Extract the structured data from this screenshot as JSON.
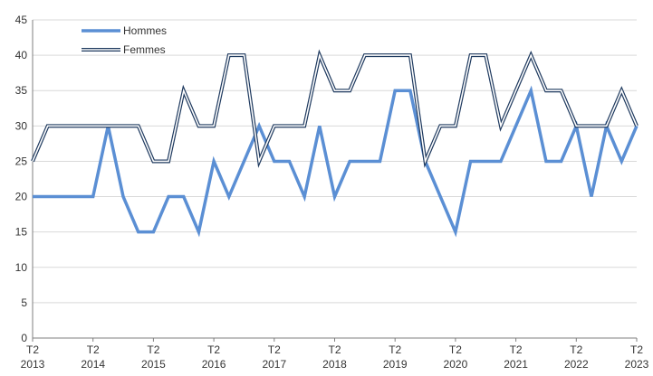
{
  "chart_data": {
    "type": "line",
    "x_tick_labels": [
      {
        "line1": "T2",
        "line2": "2013"
      },
      {
        "line1": "T2",
        "line2": "2014"
      },
      {
        "line1": "T2",
        "line2": "2015"
      },
      {
        "line1": "T2",
        "line2": "2016"
      },
      {
        "line1": "T2",
        "line2": "2017"
      },
      {
        "line1": "T2",
        "line2": "2018"
      },
      {
        "line1": "T2",
        "line2": "2019"
      },
      {
        "line1": "T2",
        "line2": "2020"
      },
      {
        "line1": "T2",
        "line2": "2021"
      },
      {
        "line1": "T2",
        "line2": "2022"
      },
      {
        "line1": "T2",
        "line2": "2023"
      }
    ],
    "ylim": [
      0,
      45
    ],
    "y_ticks": [
      0,
      5,
      10,
      15,
      20,
      25,
      30,
      35,
      40,
      45
    ],
    "grid": "horizontal",
    "legend_position": "top-left",
    "series": [
      {
        "name": "Hommes",
        "color": "#5B8FD4",
        "style": "thick",
        "values": [
          20,
          20,
          20,
          20,
          20,
          30,
          20,
          15,
          15,
          20,
          20,
          15,
          25,
          20,
          25,
          30,
          25,
          25,
          20,
          30,
          20,
          25,
          25,
          25,
          35,
          35,
          25,
          20,
          15,
          25,
          25,
          25,
          30,
          35,
          25,
          25,
          30,
          20,
          30,
          25,
          30
        ]
      },
      {
        "name": "Femmes",
        "color": "#1F3A5F",
        "style": "double",
        "values": [
          25,
          30,
          30,
          30,
          30,
          30,
          30,
          30,
          25,
          25,
          35,
          30,
          30,
          40,
          40,
          25,
          30,
          30,
          30,
          40,
          35,
          35,
          40,
          40,
          40,
          40,
          25,
          30,
          30,
          40,
          40,
          30,
          35,
          40,
          35,
          35,
          30,
          30,
          30,
          35,
          30
        ]
      }
    ]
  }
}
